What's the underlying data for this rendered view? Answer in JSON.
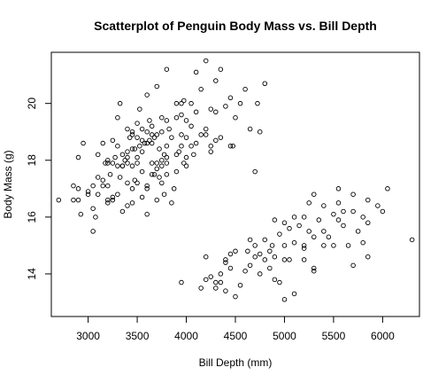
{
  "chart_data": {
    "type": "scatter",
    "title": "Scatterplot of Penguin Body Mass vs. Bill Depth",
    "xlabel": "Bill Depth (mm)",
    "ylabel": "Body Mass (g)",
    "xlim": [
      2625,
      6375
    ],
    "ylim": [
      12.5,
      21.8
    ],
    "xticks": [
      3000,
      3500,
      4000,
      4500,
      5000,
      5500,
      6000
    ],
    "xtick_labels": [
      "3000",
      "3500",
      "4000",
      "4500",
      "5000",
      "5500",
      "6000"
    ],
    "yticks": [
      14,
      16,
      18,
      20
    ],
    "ytick_labels": [
      "14",
      "16",
      "18",
      "20"
    ],
    "grid": false,
    "legend": "none",
    "marker": "open circle",
    "points": [
      [
        2700,
        16.6
      ],
      [
        2850,
        17.1
      ],
      [
        2850,
        16.6
      ],
      [
        2900,
        17.0
      ],
      [
        2900,
        16.6
      ],
      [
        2900,
        18.1
      ],
      [
        2925,
        16.1
      ],
      [
        2950,
        18.6
      ],
      [
        3000,
        16.8
      ],
      [
        3000,
        16.9
      ],
      [
        3050,
        17.1
      ],
      [
        3050,
        15.5
      ],
      [
        3050,
        16.3
      ],
      [
        3075,
        16.0
      ],
      [
        3100,
        17.4
      ],
      [
        3100,
        18.2
      ],
      [
        3100,
        16.8
      ],
      [
        3150,
        18.6
      ],
      [
        3150,
        17.3
      ],
      [
        3150,
        17.1
      ],
      [
        3175,
        17.9
      ],
      [
        3200,
        18.0
      ],
      [
        3200,
        16.6
      ],
      [
        3200,
        17.1
      ],
      [
        3200,
        17.9
      ],
      [
        3200,
        16.5
      ],
      [
        3225,
        17.5
      ],
      [
        3250,
        18.7
      ],
      [
        3250,
        17.9
      ],
      [
        3250,
        16.7
      ],
      [
        3250,
        16.6
      ],
      [
        3275,
        18.1
      ],
      [
        3300,
        19.5
      ],
      [
        3300,
        18.5
      ],
      [
        3300,
        17.8
      ],
      [
        3300,
        16.8
      ],
      [
        3325,
        17.4
      ],
      [
        3325,
        20.0
      ],
      [
        3350,
        18.2
      ],
      [
        3350,
        17.8
      ],
      [
        3350,
        16.2
      ],
      [
        3350,
        17.8
      ],
      [
        3375,
        18.0
      ],
      [
        3400,
        18.1
      ],
      [
        3400,
        17.9
      ],
      [
        3400,
        19.1
      ],
      [
        3400,
        17.2
      ],
      [
        3400,
        16.4
      ],
      [
        3400,
        18.3
      ],
      [
        3425,
        18.8
      ],
      [
        3450,
        19.0
      ],
      [
        3450,
        17.8
      ],
      [
        3450,
        18.9
      ],
      [
        3450,
        16.5
      ],
      [
        3450,
        17.0
      ],
      [
        3450,
        18.4
      ],
      [
        3475,
        18.4
      ],
      [
        3475,
        17.3
      ],
      [
        3500,
        19.3
      ],
      [
        3500,
        18.8
      ],
      [
        3500,
        17.9
      ],
      [
        3500,
        18.1
      ],
      [
        3500,
        17.2
      ],
      [
        3525,
        19.8
      ],
      [
        3525,
        18.5
      ],
      [
        3550,
        18.3
      ],
      [
        3550,
        19.1
      ],
      [
        3550,
        17.6
      ],
      [
        3550,
        16.7
      ],
      [
        3550,
        18.7
      ],
      [
        3575,
        18.6
      ],
      [
        3600,
        17.0
      ],
      [
        3600,
        17.1
      ],
      [
        3600,
        19.0
      ],
      [
        3600,
        20.3
      ],
      [
        3600,
        18.6
      ],
      [
        3600,
        16.1
      ],
      [
        3625,
        18.7
      ],
      [
        3625,
        19.4
      ],
      [
        3650,
        18.6
      ],
      [
        3650,
        19.2
      ],
      [
        3650,
        17.5
      ],
      [
        3650,
        17.9
      ],
      [
        3650,
        18.9
      ],
      [
        3675,
        17.5
      ],
      [
        3675,
        18.8
      ],
      [
        3700,
        20.6
      ],
      [
        3700,
        17.9
      ],
      [
        3700,
        18.9
      ],
      [
        3700,
        17.7
      ],
      [
        3700,
        16.6
      ],
      [
        3725,
        18.4
      ],
      [
        3725,
        17.4
      ],
      [
        3750,
        19.5
      ],
      [
        3750,
        18.0
      ],
      [
        3750,
        17.8
      ],
      [
        3750,
        17.2
      ],
      [
        3750,
        19.0
      ],
      [
        3775,
        18.2
      ],
      [
        3775,
        16.8
      ],
      [
        3800,
        18.1
      ],
      [
        3800,
        17.5
      ],
      [
        3800,
        19.4
      ],
      [
        3800,
        21.2
      ],
      [
        3800,
        18.5
      ],
      [
        3800,
        17.9
      ],
      [
        3825,
        19.1
      ],
      [
        3850,
        18.8
      ],
      [
        3850,
        16.5
      ],
      [
        3875,
        17.0
      ],
      [
        3900,
        20.0
      ],
      [
        3900,
        19.5
      ],
      [
        3900,
        18.2
      ],
      [
        3900,
        17.6
      ],
      [
        3925,
        18.3
      ],
      [
        3950,
        19.6
      ],
      [
        3950,
        20.0
      ],
      [
        3950,
        18.9
      ],
      [
        3950,
        18.5
      ],
      [
        3975,
        17.9
      ],
      [
        3975,
        20.1
      ],
      [
        4000,
        18.8
      ],
      [
        4000,
        19.4
      ],
      [
        4000,
        18.1
      ],
      [
        4000,
        17.8
      ],
      [
        4050,
        20.0
      ],
      [
        4050,
        18.5
      ],
      [
        4050,
        19.2
      ],
      [
        4075,
        18.2
      ],
      [
        4100,
        19.7
      ],
      [
        4100,
        21.1
      ],
      [
        4100,
        18.6
      ],
      [
        4150,
        18.9
      ],
      [
        4150,
        20.5
      ],
      [
        4200,
        18.9
      ],
      [
        4200,
        21.5
      ],
      [
        4200,
        19.1
      ],
      [
        4250,
        18.3
      ],
      [
        4250,
        18.5
      ],
      [
        4250,
        19.8
      ],
      [
        4300,
        19.7
      ],
      [
        4300,
        20.8
      ],
      [
        4300,
        18.7
      ],
      [
        4350,
        21.2
      ],
      [
        4350,
        18.8
      ],
      [
        4400,
        19.9
      ],
      [
        4450,
        20.2
      ],
      [
        4450,
        18.5
      ],
      [
        4475,
        18.5
      ],
      [
        4500,
        19.5
      ],
      [
        4550,
        20.0
      ],
      [
        4600,
        20.5
      ],
      [
        4650,
        19.1
      ],
      [
        4700,
        17.6
      ],
      [
        4725,
        20.0
      ],
      [
        4750,
        19.0
      ],
      [
        4800,
        20.7
      ],
      [
        3950,
        13.7
      ],
      [
        4150,
        13.5
      ],
      [
        4200,
        14.6
      ],
      [
        4200,
        13.8
      ],
      [
        4250,
        13.9
      ],
      [
        4300,
        13.7
      ],
      [
        4300,
        13.5
      ],
      [
        4350,
        14.0
      ],
      [
        4350,
        13.7
      ],
      [
        4400,
        14.4
      ],
      [
        4400,
        14.5
      ],
      [
        4400,
        13.4
      ],
      [
        4450,
        14.2
      ],
      [
        4450,
        14.7
      ],
      [
        4500,
        13.2
      ],
      [
        4500,
        14.8
      ],
      [
        4550,
        13.6
      ],
      [
        4600,
        14.1
      ],
      [
        4625,
        14.8
      ],
      [
        4650,
        15.2
      ],
      [
        4650,
        14.3
      ],
      [
        4700,
        15.0
      ],
      [
        4700,
        14.6
      ],
      [
        4750,
        14.7
      ],
      [
        4750,
        14.0
      ],
      [
        4800,
        15.2
      ],
      [
        4800,
        14.5
      ],
      [
        4850,
        14.8
      ],
      [
        4850,
        14.2
      ],
      [
        4875,
        15.0
      ],
      [
        4900,
        14.6
      ],
      [
        4900,
        13.8
      ],
      [
        4900,
        15.9
      ],
      [
        4950,
        13.7
      ],
      [
        4950,
        15.4
      ],
      [
        5000,
        15.0
      ],
      [
        5000,
        14.5
      ],
      [
        5000,
        15.8
      ],
      [
        5000,
        13.1
      ],
      [
        5050,
        14.5
      ],
      [
        5050,
        15.6
      ],
      [
        5100,
        13.3
      ],
      [
        5100,
        15.1
      ],
      [
        5100,
        16.0
      ],
      [
        5150,
        15.7
      ],
      [
        5200,
        15.0
      ],
      [
        5200,
        14.9
      ],
      [
        5200,
        16.0
      ],
      [
        5200,
        14.5
      ],
      [
        5250,
        15.5
      ],
      [
        5250,
        16.5
      ],
      [
        5300,
        15.3
      ],
      [
        5300,
        14.1
      ],
      [
        5300,
        14.2
      ],
      [
        5300,
        16.8
      ],
      [
        5350,
        15.9
      ],
      [
        5400,
        15.5
      ],
      [
        5400,
        16.4
      ],
      [
        5400,
        15.0
      ],
      [
        5450,
        15.3
      ],
      [
        5500,
        16.1
      ],
      [
        5500,
        15.0
      ],
      [
        5550,
        15.9
      ],
      [
        5550,
        16.5
      ],
      [
        5550,
        17.0
      ],
      [
        5600,
        15.7
      ],
      [
        5600,
        16.2
      ],
      [
        5650,
        15.0
      ],
      [
        5700,
        16.2
      ],
      [
        5700,
        16.8
      ],
      [
        5700,
        14.3
      ],
      [
        5750,
        15.5
      ],
      [
        5800,
        15.1
      ],
      [
        5800,
        16.0
      ],
      [
        5850,
        16.6
      ],
      [
        5850,
        15.8
      ],
      [
        5850,
        14.6
      ],
      [
        5950,
        16.4
      ],
      [
        6000,
        16.2
      ],
      [
        6050,
        17.0
      ],
      [
        6300,
        15.2
      ]
    ]
  }
}
